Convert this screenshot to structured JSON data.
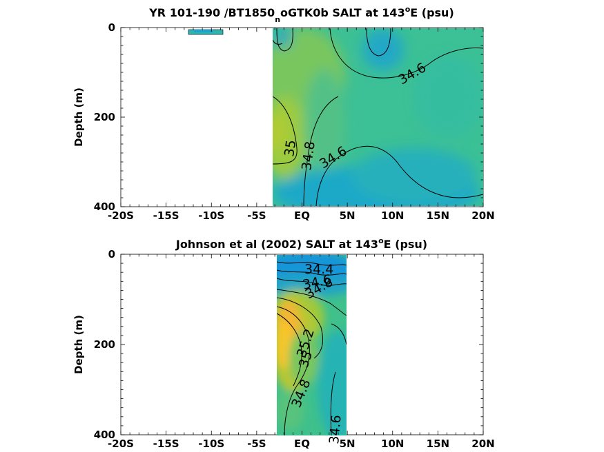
{
  "chart_data": [
    {
      "type": "heatmap",
      "title_parts": [
        "YR 101-190 /BT1850",
        "n",
        "oGTK0b SALT at 143",
        "o",
        "E (psu)"
      ],
      "ylabel": "Depth (m)",
      "xlim": [
        -20,
        20
      ],
      "ylim": [
        0,
        400
      ],
      "x_ticks": [
        -20,
        -15,
        -10,
        -5,
        0,
        5,
        10,
        15,
        20
      ],
      "x_tick_labels": [
        "-20S",
        "-15S",
        "-10S",
        "-5S",
        "EQ",
        "5N",
        "10N",
        "15N",
        "20N"
      ],
      "y_ticks": [
        0,
        200,
        400
      ],
      "y_tick_labels": [
        "0",
        "200",
        "400"
      ],
      "contour_labels": [
        "34.6",
        "35",
        "34.8",
        "34.6"
      ],
      "data_region_lat": [
        -3.5,
        20
      ],
      "patch_region_lat": [
        -12,
        -10
      ],
      "colormap": "parula",
      "colors": {
        "fresh": "#1aa5cf",
        "mid": "#3cc095",
        "salty": "#98c93c",
        "saltiest": "#f2b831"
      }
    },
    {
      "type": "heatmap",
      "title_parts": [
        "Johnson et al (2002) SALT at 143",
        "o",
        "E (psu)"
      ],
      "ylabel": "Depth (m)",
      "xlim": [
        -20,
        20
      ],
      "ylim": [
        0,
        400
      ],
      "x_ticks": [
        -20,
        -15,
        -10,
        -5,
        0,
        5,
        10,
        15,
        20
      ],
      "x_tick_labels": [
        "-20S",
        "-15S",
        "-10S",
        "-5S",
        "EQ",
        "5N",
        "10N",
        "15N",
        "20N"
      ],
      "y_ticks": [
        0,
        200,
        400
      ],
      "y_tick_labels": [
        "0",
        "200",
        "400"
      ],
      "contour_labels": [
        "34.4",
        "34.6",
        "34.8",
        "35.2",
        "35",
        "34.8",
        "34.6"
      ],
      "data_region_lat": [
        -3,
        5
      ],
      "colormap": "parula"
    }
  ]
}
